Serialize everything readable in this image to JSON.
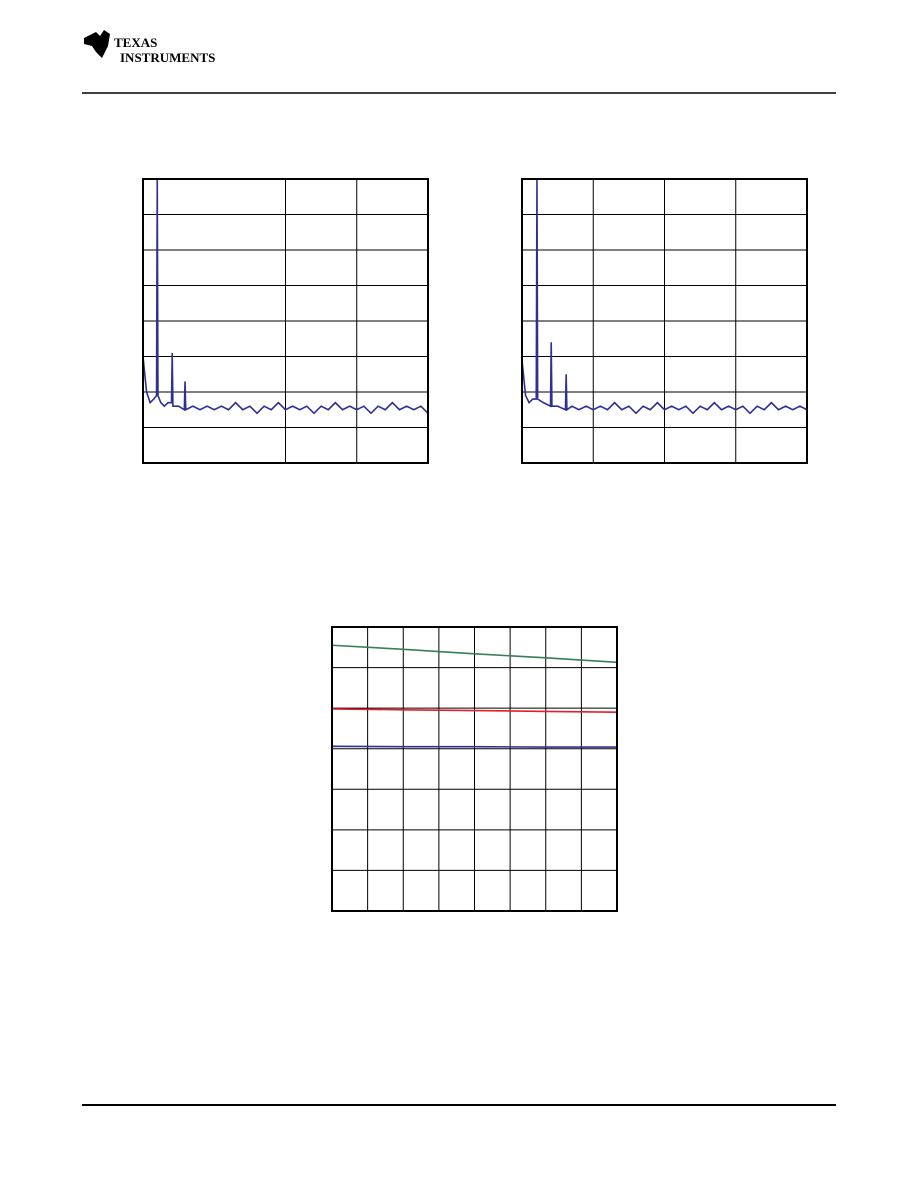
{
  "header": {
    "brand_top": "Texas",
    "brand_bottom": "Instruments"
  },
  "chart_data": [
    {
      "type": "line",
      "xlim": [
        0,
        4
      ],
      "ylim": [
        0,
        8
      ],
      "xgrid": [
        2,
        3
      ],
      "ygrid": [
        1,
        2,
        3,
        4,
        5,
        6,
        7
      ],
      "x": [
        0,
        0.05,
        0.1,
        0.15,
        0.19,
        0.2,
        0.21,
        0.25,
        0.3,
        0.35,
        0.4,
        0.41,
        0.42,
        0.5,
        0.58,
        0.59,
        0.6,
        0.7,
        0.8,
        0.9,
        1.0,
        1.1,
        1.2,
        1.3,
        1.4,
        1.5,
        1.6,
        1.7,
        1.8,
        1.9,
        2.0,
        2.1,
        2.2,
        2.3,
        2.4,
        2.5,
        2.6,
        2.7,
        2.8,
        2.9,
        3.0,
        3.1,
        3.2,
        3.3,
        3.4,
        3.5,
        3.6,
        3.7,
        3.8,
        3.9,
        4.0
      ],
      "series": [
        {
          "color": "#2e3192",
          "values": [
            3.0,
            2.0,
            1.7,
            1.8,
            1.9,
            8,
            1.9,
            1.7,
            1.6,
            1.7,
            1.7,
            3.1,
            1.6,
            1.6,
            1.5,
            2.3,
            1.5,
            1.6,
            1.5,
            1.6,
            1.5,
            1.6,
            1.5,
            1.7,
            1.5,
            1.6,
            1.4,
            1.6,
            1.5,
            1.7,
            1.5,
            1.6,
            1.5,
            1.6,
            1.4,
            1.6,
            1.5,
            1.7,
            1.5,
            1.6,
            1.5,
            1.6,
            1.4,
            1.6,
            1.5,
            1.7,
            1.5,
            1.6,
            1.5,
            1.6,
            1.4
          ]
        }
      ]
    },
    {
      "type": "line",
      "xlim": [
        0,
        4
      ],
      "ylim": [
        0,
        8
      ],
      "xgrid": [
        1,
        2,
        3
      ],
      "ygrid": [
        1,
        2,
        3,
        4,
        5,
        6,
        7
      ],
      "x": [
        0,
        0.05,
        0.1,
        0.15,
        0.2,
        0.21,
        0.22,
        0.3,
        0.4,
        0.41,
        0.42,
        0.5,
        0.61,
        0.62,
        0.63,
        0.7,
        0.8,
        0.9,
        1.0,
        1.1,
        1.2,
        1.3,
        1.4,
        1.5,
        1.6,
        1.7,
        1.8,
        1.9,
        2.0,
        2.1,
        2.2,
        2.3,
        2.4,
        2.5,
        2.6,
        2.7,
        2.8,
        2.9,
        3.0,
        3.1,
        3.2,
        3.3,
        3.4,
        3.5,
        3.6,
        3.7,
        3.8,
        3.9,
        4.0
      ],
      "series": [
        {
          "color": "#2e3192",
          "values": [
            2.9,
            1.9,
            1.7,
            1.8,
            1.8,
            8,
            1.8,
            1.7,
            1.6,
            3.4,
            1.6,
            1.6,
            1.5,
            2.5,
            1.5,
            1.6,
            1.5,
            1.6,
            1.5,
            1.6,
            1.5,
            1.7,
            1.5,
            1.6,
            1.4,
            1.6,
            1.5,
            1.7,
            1.5,
            1.6,
            1.5,
            1.6,
            1.4,
            1.6,
            1.5,
            1.7,
            1.5,
            1.6,
            1.5,
            1.6,
            1.4,
            1.6,
            1.5,
            1.7,
            1.5,
            1.6,
            1.5,
            1.6,
            1.5
          ]
        }
      ]
    },
    {
      "type": "line",
      "xlim": [
        0,
        8
      ],
      "ylim": [
        0,
        7
      ],
      "xgrid": [
        1,
        2,
        3,
        4,
        5,
        6,
        7
      ],
      "ygrid": [
        1,
        2,
        3,
        4,
        5,
        6
      ],
      "x": [
        0,
        2,
        4,
        6,
        8
      ],
      "series": [
        {
          "color": "#3a7d5a",
          "values": [
            6.55,
            6.45,
            6.34,
            6.24,
            6.13
          ]
        },
        {
          "color": "#e0202a",
          "values": [
            4.98,
            4.96,
            4.94,
            4.92,
            4.9
          ]
        },
        {
          "color": "#2e3192",
          "values": [
            4.06,
            4.05,
            4.05,
            4.04,
            4.04
          ]
        }
      ]
    }
  ]
}
